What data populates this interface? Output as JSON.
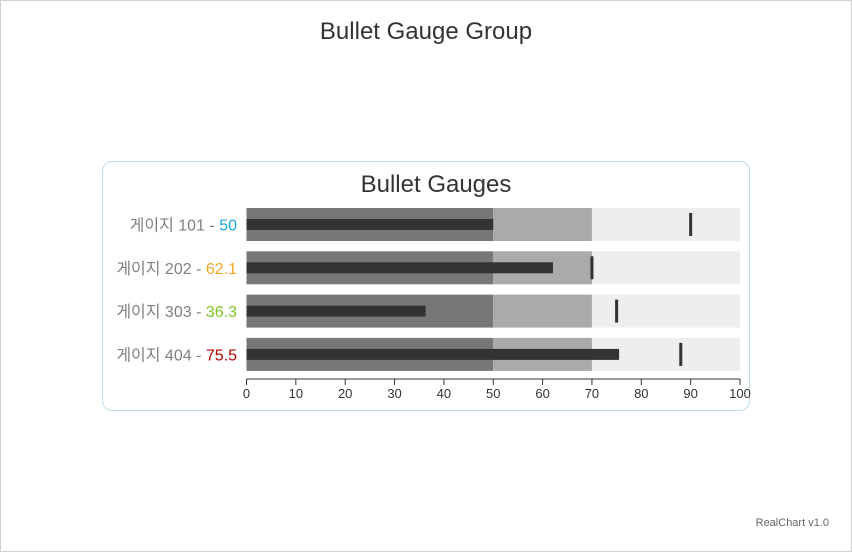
{
  "page": {
    "title": "Bullet Gauge Group",
    "credit": "RealChart v1.0"
  },
  "chart_data": {
    "type": "bullet",
    "title": "Bullet Gauges",
    "xlim": [
      0,
      100
    ],
    "ticks": [
      0,
      10,
      20,
      30,
      40,
      50,
      60,
      70,
      80,
      90,
      100
    ],
    "bands": [
      {
        "from": 0,
        "to": 50,
        "color": "#777777"
      },
      {
        "from": 50,
        "to": 70,
        "color": "#aaaaaa"
      },
      {
        "from": 70,
        "to": 100,
        "color": "#eeeeee"
      }
    ],
    "bar_color": "#333333",
    "target_color": "#333333",
    "gauges": [
      {
        "name": "게이지 101",
        "separator": " - ",
        "value": 50,
        "value_label": "50",
        "target": 90,
        "value_color": "#1ba7e0"
      },
      {
        "name": "게이지 202",
        "separator": " - ",
        "value": 62.1,
        "value_label": "62.1",
        "target": 70,
        "value_color": "#f5a623"
      },
      {
        "name": "게이지 303",
        "separator": " - ",
        "value": 36.3,
        "value_label": "36.3",
        "target": 75,
        "value_color": "#7cc621"
      },
      {
        "name": "게이지 404",
        "separator": " - ",
        "value": 75.5,
        "value_label": "75.5",
        "target": 88,
        "value_color": "#b30000"
      }
    ]
  }
}
